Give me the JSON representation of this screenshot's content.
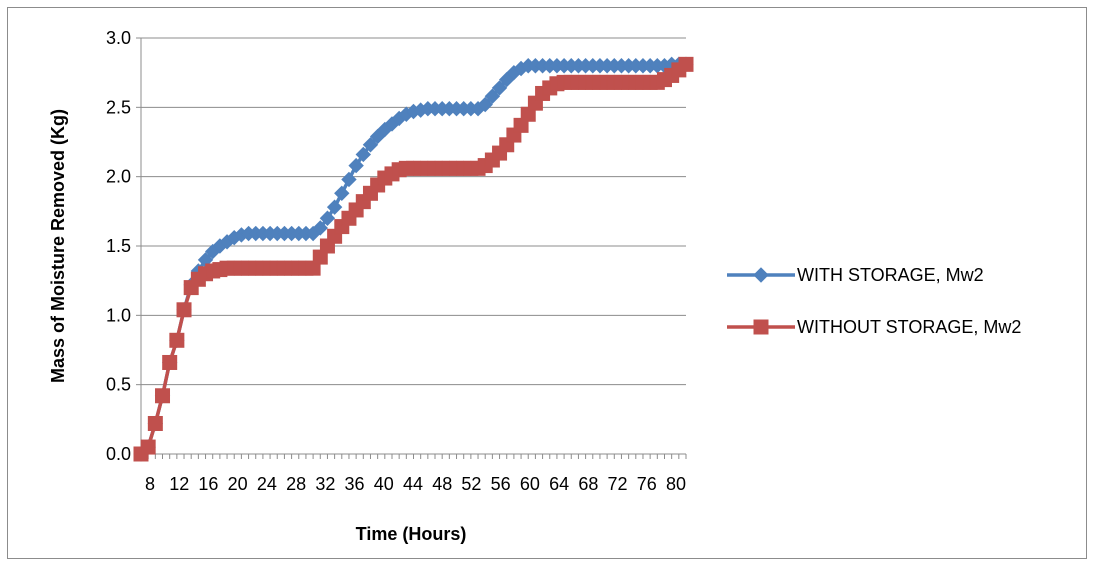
{
  "chart_data": {
    "type": "line",
    "title": "",
    "xlabel": "Time (Hours)",
    "ylabel": "Mass of Moisture Removed (Kg)",
    "xlim": [
      8,
      84
    ],
    "ylim": [
      0.0,
      3.0
    ],
    "yticks": [
      "0.0",
      "0.5",
      "1.0",
      "1.5",
      "2.0",
      "2.5",
      "3.0"
    ],
    "xtick_labels": [
      "8",
      "12",
      "16",
      "20",
      "24",
      "28",
      "32",
      "36",
      "40",
      "44",
      "48",
      "52",
      "56",
      "60",
      "64",
      "68",
      "72",
      "76",
      "80"
    ],
    "grid": "horizontal",
    "legend_position": "right",
    "x": [
      8,
      9,
      10,
      11,
      12,
      13,
      14,
      15,
      16,
      17,
      18,
      19,
      20,
      21,
      22,
      23,
      24,
      25,
      26,
      27,
      28,
      29,
      30,
      31,
      32,
      33,
      34,
      35,
      36,
      37,
      38,
      39,
      40,
      41,
      42,
      43,
      44,
      45,
      46,
      47,
      48,
      49,
      50,
      51,
      52,
      53,
      54,
      55,
      56,
      57,
      58,
      59,
      60,
      61,
      62,
      63,
      64,
      65,
      66,
      67,
      68,
      69,
      70,
      71,
      72,
      73,
      74,
      75,
      76,
      77,
      78,
      79,
      80,
      81,
      82,
      83,
      84
    ],
    "series": [
      {
        "name": "WITH STORAGE, Mw2",
        "color": "#4F81BD",
        "marker": "diamond",
        "values": [
          0.0,
          0.05,
          0.22,
          0.42,
          0.66,
          0.82,
          1.04,
          1.22,
          1.32,
          1.4,
          1.46,
          1.5,
          1.53,
          1.56,
          1.58,
          1.59,
          1.59,
          1.59,
          1.59,
          1.59,
          1.59,
          1.59,
          1.59,
          1.59,
          1.59,
          1.63,
          1.7,
          1.78,
          1.88,
          1.98,
          2.08,
          2.16,
          2.23,
          2.29,
          2.34,
          2.38,
          2.42,
          2.45,
          2.47,
          2.48,
          2.49,
          2.49,
          2.49,
          2.49,
          2.49,
          2.49,
          2.49,
          2.49,
          2.52,
          2.58,
          2.64,
          2.7,
          2.75,
          2.78,
          2.8,
          2.8,
          2.8,
          2.8,
          2.8,
          2.8,
          2.8,
          2.8,
          2.8,
          2.8,
          2.8,
          2.8,
          2.8,
          2.8,
          2.8,
          2.8,
          2.8,
          2.8,
          2.8,
          2.8,
          2.81,
          2.81,
          2.81
        ]
      },
      {
        "name": "WITHOUT STORAGE, Mw2",
        "color": "#C0504D",
        "marker": "square",
        "values": [
          0.0,
          0.05,
          0.22,
          0.42,
          0.66,
          0.82,
          1.04,
          1.2,
          1.26,
          1.3,
          1.32,
          1.33,
          1.34,
          1.34,
          1.34,
          1.34,
          1.34,
          1.34,
          1.34,
          1.34,
          1.34,
          1.34,
          1.34,
          1.34,
          1.34,
          1.42,
          1.5,
          1.57,
          1.64,
          1.7,
          1.76,
          1.82,
          1.88,
          1.94,
          1.99,
          2.02,
          2.05,
          2.06,
          2.06,
          2.06,
          2.06,
          2.06,
          2.06,
          2.06,
          2.06,
          2.06,
          2.06,
          2.06,
          2.08,
          2.12,
          2.17,
          2.23,
          2.3,
          2.37,
          2.45,
          2.53,
          2.6,
          2.64,
          2.67,
          2.68,
          2.68,
          2.68,
          2.68,
          2.68,
          2.68,
          2.68,
          2.68,
          2.68,
          2.68,
          2.68,
          2.68,
          2.68,
          2.68,
          2.7,
          2.73,
          2.77,
          2.81
        ]
      }
    ]
  }
}
